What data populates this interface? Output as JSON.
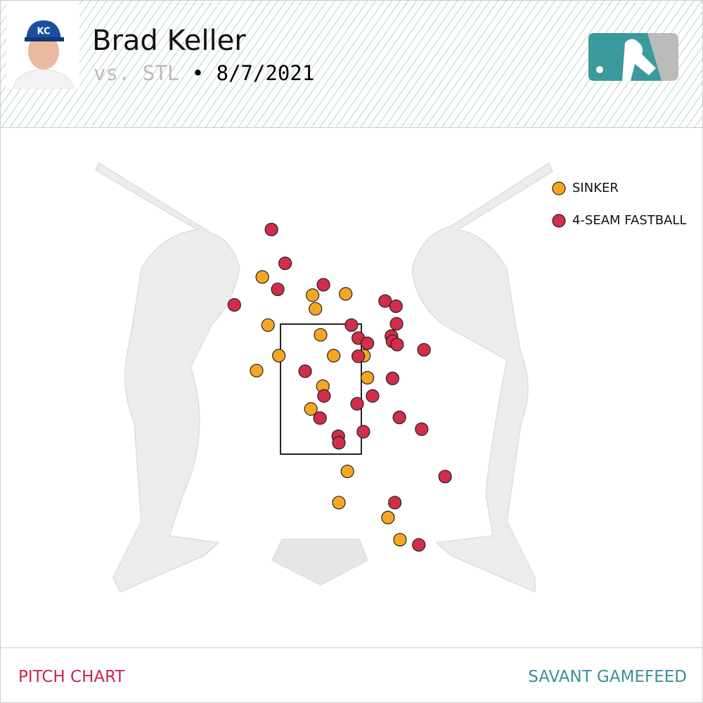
{
  "header": {
    "name": "Brad Keller",
    "opponent": "vs. STL",
    "separator": "•",
    "date": "8/7/2021"
  },
  "chart_data": {
    "type": "scatter",
    "xlim": [
      -4,
      4
    ],
    "ylim": [
      -1.5,
      6.5
    ],
    "series": [
      {
        "name": "SINKER",
        "color": "#f5a623",
        "x": [
          -1.02,
          -0.14,
          0.44,
          -0.09,
          -0.92,
          0,
          -0.73,
          0.23,
          -1.12,
          0.76,
          0.82,
          0.04,
          -0.17,
          0.47,
          0.32,
          1.18,
          1.39
        ],
        "values": [
          4.23,
          3.95,
          3.97,
          3.74,
          3.49,
          3.34,
          3.02,
          3.02,
          2.79,
          3.02,
          2.68,
          2.55,
          2.2,
          1.24,
          0.76,
          0.53,
          0.19
        ]
      },
      {
        "name": "4-SEAM FASTBALL",
        "color": "#d22d49",
        "x": [
          -0.86,
          -0.62,
          0.05,
          -0.75,
          -1.51,
          1.13,
          1.32,
          1.33,
          0.54,
          0.66,
          0.82,
          1.24,
          1.26,
          1.34,
          1.81,
          0.66,
          -0.27,
          1.26,
          0.06,
          0.91,
          0.64,
          -0.01,
          1.38,
          1.77,
          0.75,
          0.31,
          0.32,
          2.18,
          1.3,
          1.72
        ],
        "values": [
          4.96,
          4.44,
          4.11,
          4.04,
          3.8,
          3.86,
          3.78,
          3.51,
          3.49,
          3.29,
          3.21,
          3.32,
          3.24,
          3.19,
          3.11,
          3.01,
          2.78,
          2.67,
          2.4,
          2.4,
          2.28,
          2.06,
          2.07,
          1.89,
          1.85,
          1.78,
          1.68,
          1.16,
          0.76,
          0.11
        ]
      }
    ]
  },
  "footer": {
    "left": "PITCH CHART",
    "right": "SAVANT GAMEFEED"
  }
}
